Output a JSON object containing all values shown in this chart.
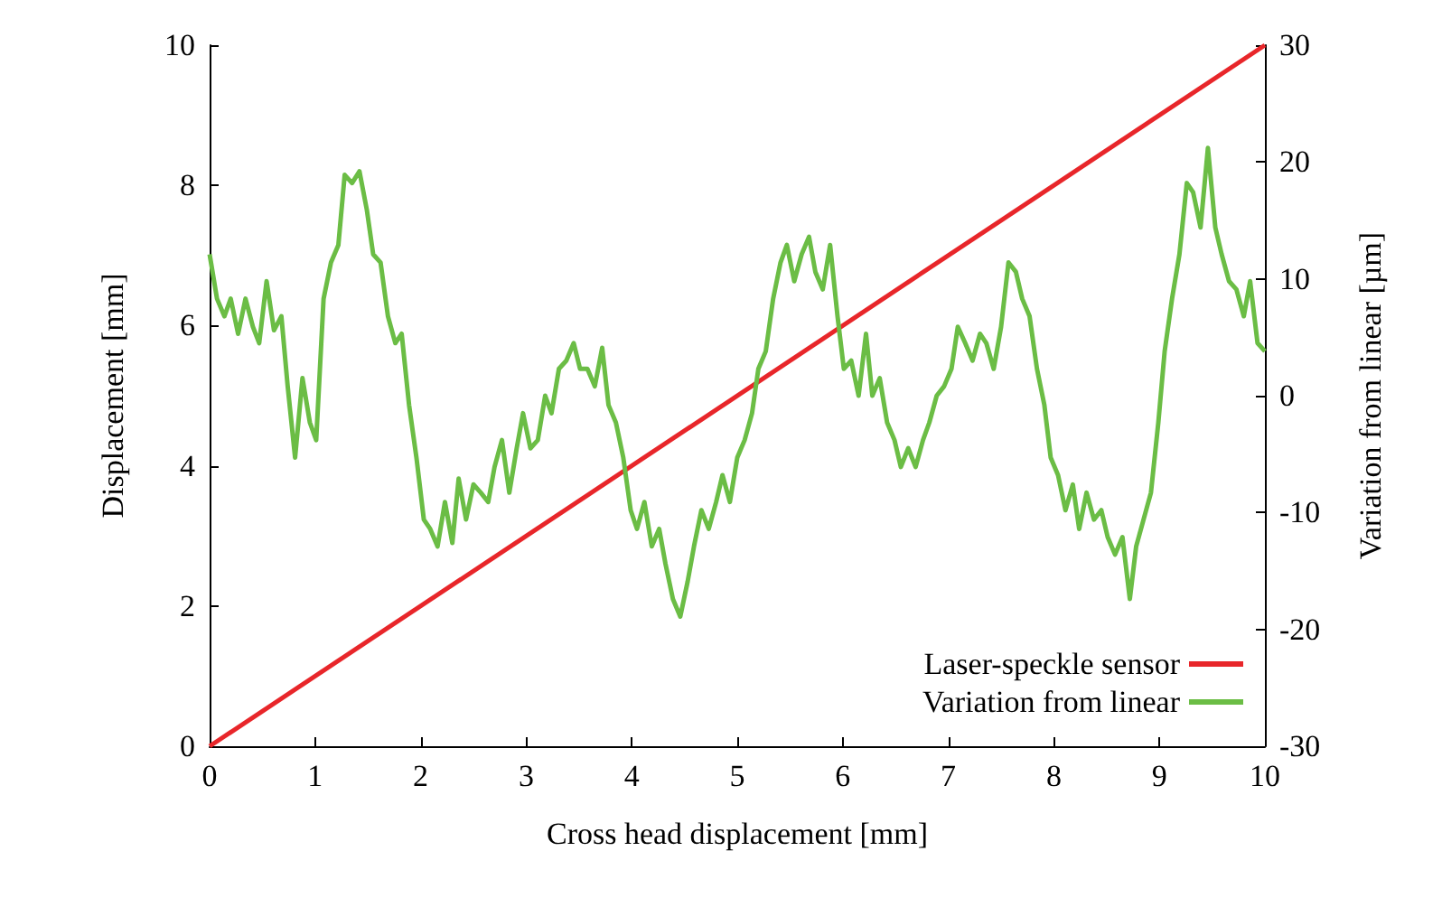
{
  "chart_data": {
    "type": "line",
    "xlabel": "Cross head displacement [mm]",
    "ylabel": "Displacement [mm]",
    "y2label": "Variation from linear [µm]",
    "xlim": [
      0,
      10
    ],
    "xticks": [
      0,
      1,
      2,
      3,
      4,
      5,
      6,
      7,
      8,
      9,
      10
    ],
    "ylim": [
      0,
      10
    ],
    "yticks": [
      0,
      2,
      4,
      6,
      8,
      10
    ],
    "y2lim": [
      -30,
      30
    ],
    "y2ticks": [
      -30,
      -20,
      -10,
      0,
      10,
      20,
      30
    ],
    "legend": "bottom right",
    "grid": false,
    "marker": "none",
    "line_style": "solid",
    "series": [
      {
        "name": "Laser-speckle sensor",
        "color": "#e8262a",
        "x": [
          0,
          10
        ],
        "values": [
          0,
          10
        ]
      },
      {
        "name": "Variation from linear",
        "color": "#6bbd45",
        "axis": "y2",
        "x": [
          0,
          0.07,
          0.14,
          0.2,
          0.27,
          0.34,
          0.41,
          0.47,
          0.54,
          0.61,
          0.68,
          0.74,
          0.81,
          0.88,
          0.95,
          1.01,
          1.08,
          1.15,
          1.22,
          1.28,
          1.35,
          1.42,
          1.49,
          1.55,
          1.62,
          1.69,
          1.76,
          1.82,
          1.89,
          1.96,
          2.03,
          2.09,
          2.16,
          2.23,
          2.3,
          2.36,
          2.43,
          2.5,
          2.57,
          2.64,
          2.7,
          2.77,
          2.84,
          2.91,
          2.97,
          3.04,
          3.11,
          3.18,
          3.24,
          3.31,
          3.38,
          3.45,
          3.51,
          3.58,
          3.65,
          3.72,
          3.78,
          3.85,
          3.92,
          3.99,
          4.05,
          4.12,
          4.19,
          4.26,
          4.32,
          4.39,
          4.46,
          4.53,
          4.59,
          4.66,
          4.73,
          4.8,
          4.86,
          4.93,
          5,
          5.07,
          5.14,
          5.2,
          5.27,
          5.34,
          5.41,
          5.47,
          5.54,
          5.61,
          5.68,
          5.74,
          5.81,
          5.88,
          5.95,
          6.01,
          6.08,
          6.15,
          6.22,
          6.28,
          6.35,
          6.42,
          6.49,
          6.55,
          6.62,
          6.69,
          6.76,
          6.82,
          6.89,
          6.96,
          7.03,
          7.09,
          7.16,
          7.23,
          7.3,
          7.36,
          7.43,
          7.5,
          7.57,
          7.64,
          7.7,
          7.77,
          7.84,
          7.91,
          7.97,
          8.04,
          8.11,
          8.18,
          8.24,
          8.31,
          8.38,
          8.45,
          8.51,
          8.58,
          8.65,
          8.72,
          8.78,
          8.85,
          8.92,
          8.99,
          9.05,
          9.12,
          9.19,
          9.26,
          9.32,
          9.39,
          9.46,
          9.53,
          9.59,
          9.66,
          9.73,
          9.8,
          9.86,
          9.93,
          10
        ],
        "values": [
          12.1,
          8.3,
          6.8,
          8.3,
          5.3,
          8.3,
          5.9,
          4.5,
          9.8,
          5.6,
          6.8,
          0.8,
          -5.3,
          1.5,
          -2.3,
          -3.8,
          8.3,
          11.4,
          12.9,
          18.9,
          18.2,
          19.2,
          15.9,
          12.1,
          11.4,
          6.8,
          4.5,
          5.3,
          -0.8,
          -5.3,
          -10.6,
          -11.4,
          -12.9,
          -9.1,
          -12.6,
          -7.1,
          -10.6,
          -7.6,
          -8.3,
          -9.1,
          -6.1,
          -3.8,
          -8.3,
          -4.5,
          -1.5,
          -4.5,
          -3.8,
          0,
          -1.5,
          2.3,
          3,
          4.5,
          2.3,
          2.3,
          0.8,
          4.1,
          -0.8,
          -2.3,
          -5.3,
          -9.8,
          -11.4,
          -9.1,
          -12.9,
          -11.4,
          -14.4,
          -17.4,
          -18.9,
          -15.9,
          -12.9,
          -9.8,
          -11.4,
          -9.1,
          -6.8,
          -9.1,
          -5.3,
          -3.8,
          -1.5,
          2.3,
          3.8,
          8.3,
          11.4,
          12.9,
          9.8,
          12.1,
          13.6,
          10.6,
          9.1,
          12.9,
          6.8,
          2.3,
          3,
          0,
          5.3,
          0,
          1.5,
          -2.3,
          -3.8,
          -6.1,
          -4.5,
          -6.1,
          -3.8,
          -2.3,
          0,
          0.8,
          2.3,
          5.9,
          4.5,
          3,
          5.3,
          4.5,
          2.3,
          5.9,
          11.4,
          10.6,
          8.3,
          6.8,
          2.3,
          -0.8,
          -5.3,
          -6.8,
          -9.8,
          -7.6,
          -11.4,
          -8.3,
          -10.6,
          -9.8,
          -12.1,
          -13.6,
          -12.1,
          -17.4,
          -12.9,
          -10.6,
          -8.3,
          -2.3,
          3.8,
          8.3,
          12.1,
          18.2,
          17.4,
          14.4,
          21.2,
          14.4,
          12.1,
          9.8,
          9.1,
          6.8,
          9.8,
          4.5,
          3.8
        ]
      }
    ]
  }
}
